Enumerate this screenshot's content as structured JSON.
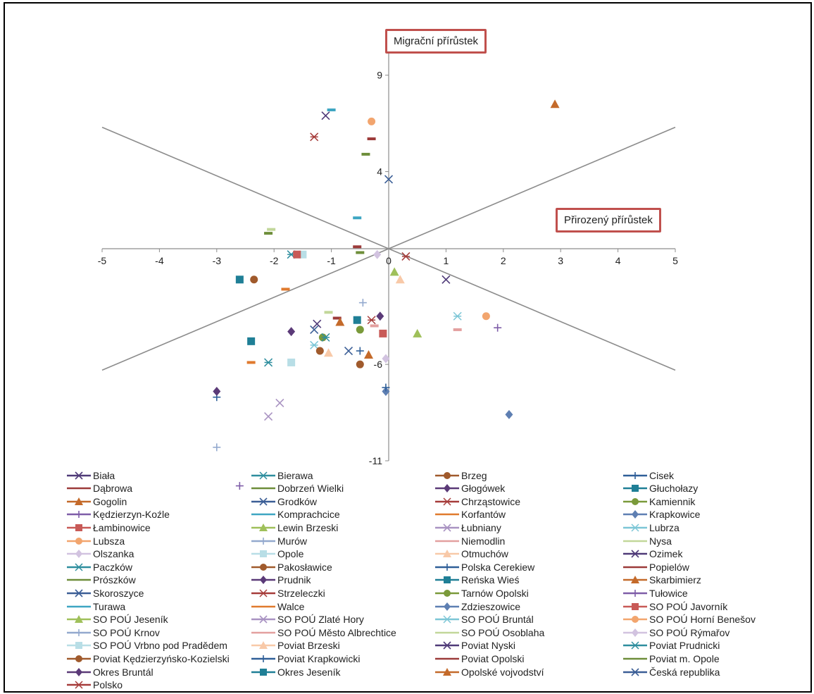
{
  "colors": [
    "#4F3A78",
    "#2E8E9E",
    "#A05A2C",
    "#2F5F98",
    "#9C3B3A",
    "#6E8E3A",
    "#5B3A78",
    "#1F7F96",
    "#C46A2A",
    "#3B5E96",
    "#A63C3A",
    "#7A9A3A",
    "#7E5DA8",
    "#3EA6C2",
    "#E07A2E",
    "#5E7FB2",
    "#C85A57",
    "#9FC05A",
    "#A993C2",
    "#7CC6D6",
    "#F2A56E",
    "#93A9CE",
    "#E3A09F",
    "#C2D79A",
    "#D2C3E0",
    "#B8DEE6",
    "#F8C9A8"
  ],
  "markers": [
    "x",
    "star",
    "circle",
    "plus",
    "dash",
    "dash",
    "diamond",
    "square",
    "triangle",
    "x",
    "star",
    "circle",
    "plus",
    "dash",
    "dash",
    "diamond",
    "square",
    "triangle",
    "x",
    "star",
    "circle",
    "plus",
    "dash",
    "dash",
    "diamond",
    "square",
    "triangle"
  ],
  "chart_data": {
    "type": "scatter",
    "xlim": [
      -5,
      5
    ],
    "ylim": [
      -11,
      11
    ],
    "x_ticks": [
      -5,
      -4,
      -3,
      -2,
      -1,
      0,
      1,
      2,
      3,
      4,
      5
    ],
    "y_ticks": [
      9,
      4,
      -6,
      -11
    ],
    "x_tick_labels": [
      "-5",
      "-4",
      "-3",
      "-2",
      "-1",
      "0",
      "1",
      "2",
      "3",
      "4",
      "5"
    ],
    "y_tick_labels": [
      "9",
      "4",
      "-6",
      "-11"
    ],
    "grid": false,
    "legend_position": "bottom",
    "xlabel": "Přirozený přírůstek",
    "ylabel": "Migrační přírůstek",
    "reference_lines": [
      {
        "from": [
          -5,
          6.3
        ],
        "to": [
          5,
          -6.3
        ]
      },
      {
        "from": [
          -5,
          -6.3
        ],
        "to": [
          5,
          6.3
        ]
      }
    ],
    "series": [
      {
        "name": "Biała",
        "x": -1.1,
        "y": 6.9
      },
      {
        "name": "Bierawa",
        "x": -1.7,
        "y": -0.3
      },
      {
        "name": "Brzeg",
        "x": -0.5,
        "y": -6.0
      },
      {
        "name": "Cisek",
        "x": -3.0,
        "y": -7.7
      },
      {
        "name": "Dąbrowa",
        "x": -0.3,
        "y": 5.7
      },
      {
        "name": "Dobrzeń Wielki",
        "x": -0.4,
        "y": 4.9
      },
      {
        "name": "Głogówek",
        "x": -3.0,
        "y": -7.4
      },
      {
        "name": "Głuchołazy",
        "x": -2.4,
        "y": -4.8
      },
      {
        "name": "Gogolin",
        "x": -0.35,
        "y": -5.5
      },
      {
        "name": "Grodków",
        "x": -0.7,
        "y": -5.3
      },
      {
        "name": "Chrząstowice",
        "x": -1.3,
        "y": 5.8
      },
      {
        "name": "Kamiennik",
        "x": -1.15,
        "y": -4.6
      },
      {
        "name": "Kędzierzyn-Koźle",
        "x": -2.6,
        "y": -12.3
      },
      {
        "name": "Komprachcice",
        "x": -1.0,
        "y": 7.2
      },
      {
        "name": "Korfantów",
        "x": -1.8,
        "y": -2.1
      },
      {
        "name": "Krapkowice",
        "x": -0.05,
        "y": -7.4
      },
      {
        "name": "Łambinowice",
        "x": -0.1,
        "y": -4.4
      },
      {
        "name": "Lewin Brzeski",
        "x": 0.1,
        "y": -1.2
      },
      {
        "name": "Łubniany",
        "x": -2.1,
        "y": -8.7
      },
      {
        "name": "Lubrza",
        "x": -1.3,
        "y": -5.0
      },
      {
        "name": "Lubsza",
        "x": -0.3,
        "y": 6.6
      },
      {
        "name": "Murów",
        "x": -3.0,
        "y": -10.3
      },
      {
        "name": "Niemodlin",
        "x": 1.2,
        "y": -4.2
      },
      {
        "name": "Nysa",
        "x": -1.05,
        "y": -3.3
      },
      {
        "name": "Olszanka",
        "x": -0.2,
        "y": -0.3
      },
      {
        "name": "Opole",
        "x": -1.5,
        "y": -0.3
      },
      {
        "name": "Otmuchów",
        "x": -1.05,
        "y": -5.4
      },
      {
        "name": "Ozimek",
        "x": 1.0,
        "y": -1.6
      },
      {
        "name": "Paczków",
        "x": -1.1,
        "y": -4.6
      },
      {
        "name": "Pakosławice",
        "x": -2.35,
        "y": -1.6
      },
      {
        "name": "Polska Cerekiew",
        "x": -0.5,
        "y": -5.3
      },
      {
        "name": "Popielów",
        "x": -0.9,
        "y": -3.6
      },
      {
        "name": "Prószków",
        "x": -2.1,
        "y": 0.8
      },
      {
        "name": "Prudnik",
        "x": -1.7,
        "y": -4.3
      },
      {
        "name": "Reńska Wieś",
        "x": -2.6,
        "y": -1.6
      },
      {
        "name": "Skarbimierz",
        "x": 2.9,
        "y": 7.5
      },
      {
        "name": "Skoroszyce",
        "x": -1.3,
        "y": -4.2
      },
      {
        "name": "Strzeleczki",
        "x": -0.3,
        "y": -3.7
      },
      {
        "name": "Tarnów Opolski",
        "x": -0.5,
        "y": -4.2
      },
      {
        "name": "Tułowice",
        "x": 1.9,
        "y": -4.1
      },
      {
        "name": "Turawa",
        "x": -0.55,
        "y": 1.6
      },
      {
        "name": "Walce",
        "x": -2.4,
        "y": -5.9
      },
      {
        "name": "Zdzieszowice",
        "x": 2.1,
        "y": -8.6
      },
      {
        "name": "SO POÚ Javorník",
        "x": -1.6,
        "y": -0.3
      },
      {
        "name": "SO POÚ Jeseník",
        "x": 0.5,
        "y": -4.4
      },
      {
        "name": "SO POÚ Zlaté Hory",
        "x": -1.9,
        "y": -8.0
      },
      {
        "name": "SO POÚ Bruntál",
        "x": 1.2,
        "y": -3.5
      },
      {
        "name": "SO POÚ Horní Benešov",
        "x": 1.7,
        "y": -3.5
      },
      {
        "name": "SO POÚ Krnov",
        "x": -0.45,
        "y": -2.8
      },
      {
        "name": "SO POÚ Město Albrechtice",
        "x": -0.25,
        "y": -4.0
      },
      {
        "name": "SO POÚ Osoblaha",
        "x": -2.05,
        "y": 1.0
      },
      {
        "name": "SO POÚ Rýmařov",
        "x": -0.05,
        "y": -5.7
      },
      {
        "name": "SO POÚ Vrbno pod Pradědem",
        "x": -1.7,
        "y": -5.9
      },
      {
        "name": "Poviat Brzeski",
        "x": 0.2,
        "y": -1.6
      },
      {
        "name": "Poviat Nyski",
        "x": -1.25,
        "y": -3.9
      },
      {
        "name": "Poviat Prudnicki",
        "x": -2.1,
        "y": -5.9
      },
      {
        "name": "Poviat Kędzierzyńsko-Kozielski",
        "x": -1.2,
        "y": -5.3
      },
      {
        "name": "Poviat Krapkowicki",
        "x": -0.05,
        "y": -7.2
      },
      {
        "name": "Poviat Opolski",
        "x": -0.55,
        "y": 0.1
      },
      {
        "name": "Poviat m. Opole",
        "x": -0.5,
        "y": -0.2
      },
      {
        "name": "Okres Bruntál",
        "x": -0.15,
        "y": -3.5
      },
      {
        "name": "Okres Jeseník",
        "x": -0.55,
        "y": -3.7
      },
      {
        "name": "Opolské vojvodství",
        "x": -0.85,
        "y": -3.8
      },
      {
        "name": "Česká republika",
        "x": 0.0,
        "y": 3.6
      },
      {
        "name": "Polsko",
        "x": 0.3,
        "y": -0.4
      }
    ]
  }
}
